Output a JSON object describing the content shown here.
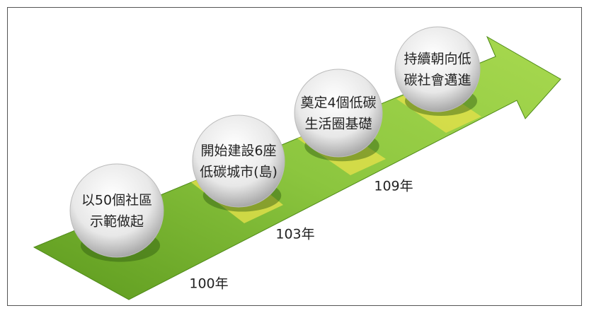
{
  "steps": [
    {
      "lines": [
        "以50個社區",
        "示範做起"
      ],
      "year": "100年"
    },
    {
      "lines": [
        "開始建設6座",
        "低碳城市(島)"
      ],
      "year": "103年"
    },
    {
      "lines": [
        "奠定4個低碳",
        "生活圈基礎"
      ],
      "year": "109年"
    },
    {
      "lines": [
        "持續朝向低",
        "碳社會邁進"
      ]
    }
  ]
}
